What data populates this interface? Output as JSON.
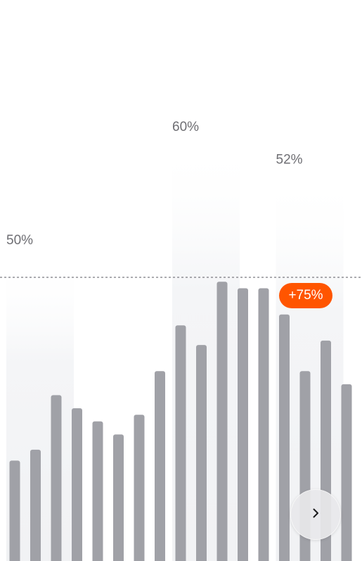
{
  "chart_data": {
    "type": "bar",
    "values": [
      46,
      51,
      76,
      70,
      64,
      58,
      67,
      87,
      108,
      99,
      128,
      125,
      125,
      113,
      87,
      101,
      81
    ],
    "groups": [
      {
        "label": "50%",
        "first_bar": 0,
        "last_bar": 2
      },
      {
        "label": "60%",
        "first_bar": 8,
        "last_bar": 11
      },
      {
        "label": "52%",
        "first_bar": 13,
        "last_bar": 15
      }
    ],
    "reference_line": {
      "style": "dashed",
      "level": 130
    },
    "highlight": {
      "label": "+75%",
      "bar": 13
    },
    "bar_color": "#a0a1a7",
    "band_color": "#f1f2f4",
    "grid": false,
    "legend": false
  },
  "badge": {
    "label": "+75%",
    "color": "#ff5500"
  },
  "next_button": {
    "icon": "chevron-right-icon"
  }
}
